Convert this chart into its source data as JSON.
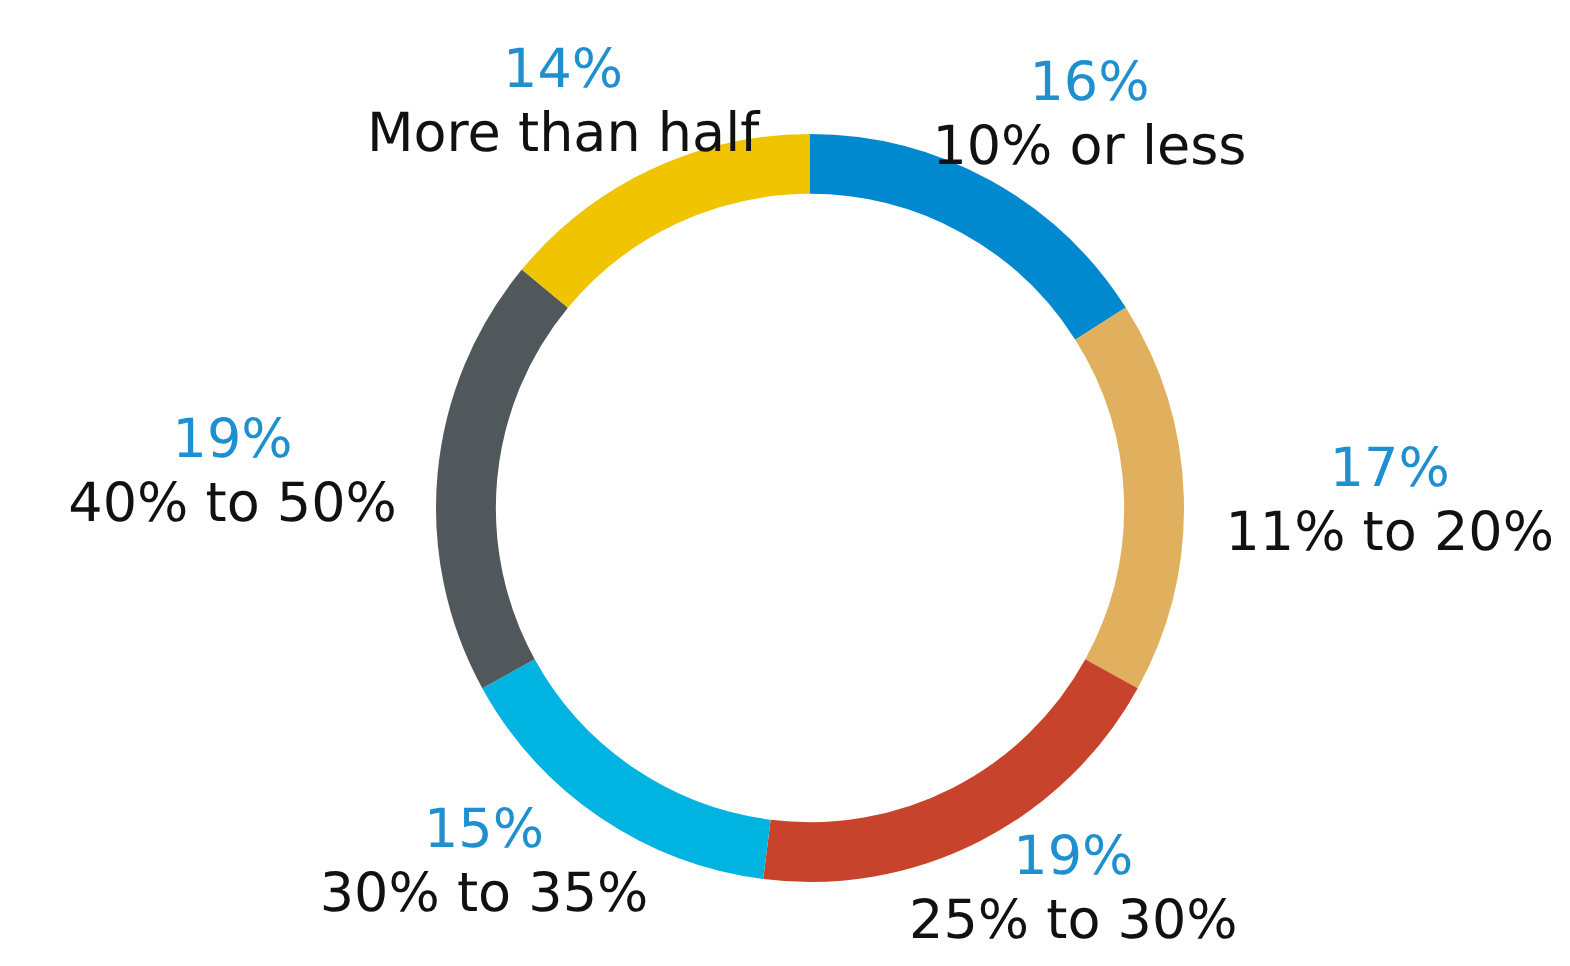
{
  "chart_data": {
    "type": "donut",
    "categories": [
      "10% or less",
      "11% to 20%",
      "25% to 30%",
      "30% to 35%",
      "40% to 50%",
      "More than half"
    ],
    "values": [
      16,
      17,
      19,
      15,
      19,
      14
    ],
    "value_labels": [
      "16%",
      "17%",
      "19%",
      "15%",
      "19%",
      "14%"
    ],
    "colors": [
      "#0089cf",
      "#e0b05e",
      "#c8432b",
      "#00b3e0",
      "#51585c",
      "#f0c400"
    ],
    "legend": false
  }
}
